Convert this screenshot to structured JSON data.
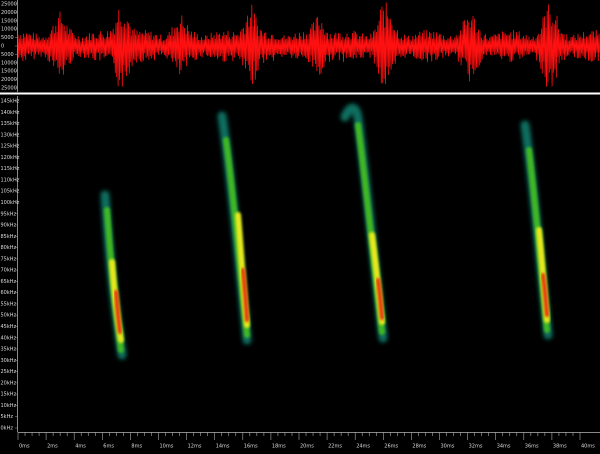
{
  "waveform_axis": {
    "labels": [
      "25000",
      "20000",
      "15000",
      "10000",
      "5000",
      "0",
      "5000",
      "10000",
      "15000",
      "20000",
      "25000"
    ]
  },
  "frequency_axis": {
    "labels": [
      "145kHz",
      "140kHz",
      "135kHz",
      "130kHz",
      "125kHz",
      "120kHz",
      "115kHz",
      "110kHz",
      "105kHz",
      "100kHz",
      "95kHz",
      "90kHz",
      "85kHz",
      "80kHz",
      "75kHz",
      "70kHz",
      "65kHz",
      "60kHz",
      "55kHz",
      "50kHz",
      "45kHz",
      "40kHz",
      "35kHz",
      "30kHz",
      "25kHz",
      "20kHz",
      "15kHz",
      "10kHz",
      "5kHz",
      "0kHz"
    ]
  },
  "time_axis": {
    "labels": [
      "0ms",
      "2ms",
      "4ms",
      "6ms",
      "8ms",
      "10ms",
      "12ms",
      "14ms",
      "16ms",
      "18ms",
      "20ms",
      "22ms",
      "24ms",
      "26ms",
      "28ms",
      "30ms",
      "32ms",
      "34ms",
      "36ms",
      "38ms",
      "40ms"
    ]
  }
}
